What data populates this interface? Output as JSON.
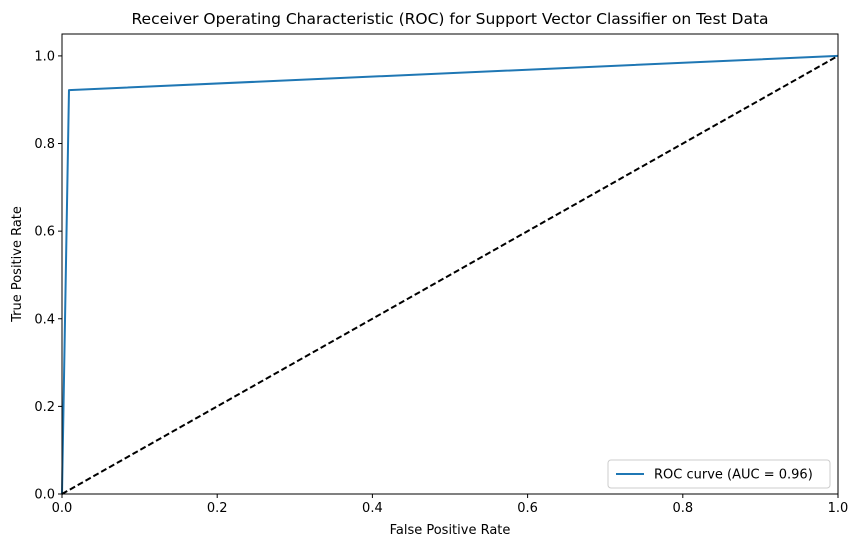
{
  "chart_data": {
    "type": "line",
    "title": "Receiver Operating Characteristic (ROC) for Support Vector Classifier on Test Data",
    "xlabel": "False Positive Rate",
    "ylabel": "True Positive Rate",
    "xlim": [
      0.0,
      1.0
    ],
    "ylim": [
      0.0,
      1.05
    ],
    "xticks": [
      0.0,
      0.2,
      0.4,
      0.6,
      0.8,
      1.0
    ],
    "xtick_labels": [
      "0.0",
      "0.2",
      "0.4",
      "0.6",
      "0.8",
      "1.0"
    ],
    "yticks": [
      0.0,
      0.2,
      0.4,
      0.6,
      0.8,
      1.0
    ],
    "ytick_labels": [
      "0.0",
      "0.2",
      "0.4",
      "0.6",
      "0.8",
      "1.0"
    ],
    "grid": false,
    "legend_position": "lower-right",
    "series": [
      {
        "name": "ROC curve (AUC = 0.96)",
        "color": "#1f77b4",
        "style": "solid",
        "x": [
          0.0,
          0.009,
          1.0
        ],
        "y": [
          0.0,
          0.922,
          1.0
        ]
      },
      {
        "color": "#000000",
        "style": "dashed",
        "x": [
          0.0,
          1.0
        ],
        "y": [
          0.0,
          1.0
        ]
      }
    ]
  }
}
